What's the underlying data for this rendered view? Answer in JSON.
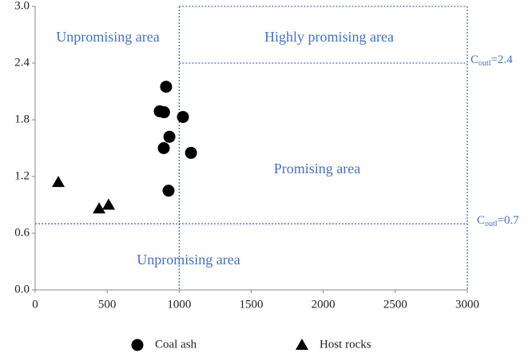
{
  "chart_data": {
    "type": "scatter",
    "xlim": [
      0,
      3000
    ],
    "xticks": [
      0,
      500,
      1000,
      1500,
      2000,
      2500,
      3000
    ],
    "ylim": [
      0,
      3.0
    ],
    "yticks": [
      {
        "value": 0,
        "label": "0.0"
      },
      0.6,
      1.2,
      1.8,
      2.4,
      {
        "value": 3.0,
        "label": "3.0"
      }
    ],
    "series": [
      {
        "name": "Coal ash",
        "color": "#000000",
        "marker": "circle",
        "x": [
          909,
          865,
          895,
          1026,
          932,
          893,
          1082,
          926
        ],
        "y": [
          2.15,
          1.89,
          1.88,
          1.83,
          1.62,
          1.5,
          1.45,
          1.05
        ]
      },
      {
        "name": "Host rocks",
        "color": "#000000",
        "marker": "triangle",
        "x": [
          161,
          444,
          510
        ],
        "y": [
          1.14,
          0.86,
          0.9
        ]
      }
    ],
    "x_threshold": 1000,
    "thresholds": [
      {
        "y": 2.4,
        "label_base": "C",
        "label_sub": "outl",
        "label_suffix": "=2.4"
      },
      {
        "y": 0.7,
        "label_base": "C",
        "label_sub": "outl",
        "label_suffix": "=0.7"
      }
    ],
    "annotations": [
      "Unpromising area",
      "Highly promising area",
      "Promising area",
      "Unpromising area"
    ],
    "annotation_color": "#4472c4"
  }
}
